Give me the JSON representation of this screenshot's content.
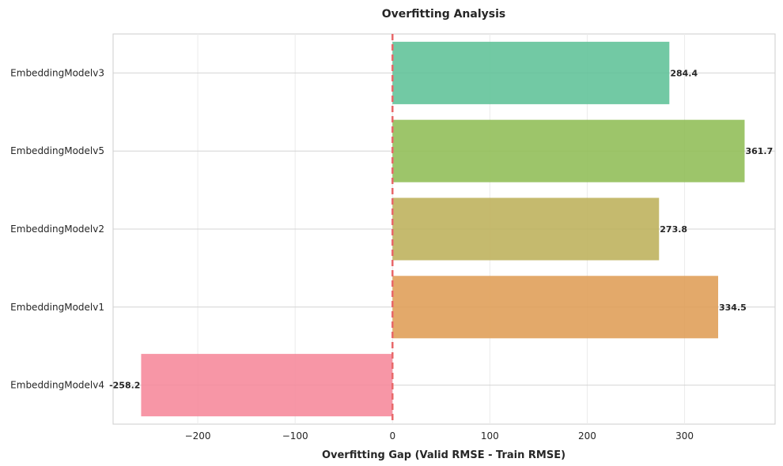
{
  "chart_data": {
    "type": "bar",
    "orientation": "horizontal",
    "title": "Overfitting Analysis",
    "xlabel": "Overfitting Gap (Valid RMSE - Train RMSE)",
    "ylabel": "",
    "xlim": [
      -287,
      393
    ],
    "xticks": [
      -200,
      -100,
      0,
      100,
      200,
      300
    ],
    "xtick_labels": [
      "−200",
      "−100",
      "0",
      "100",
      "200",
      "300"
    ],
    "grid": true,
    "reference_line": {
      "x": 0,
      "style": "dashed",
      "color": "#e8686a"
    },
    "categories": [
      "EmbeddingModelv3",
      "EmbeddingModelv5",
      "EmbeddingModelv2",
      "EmbeddingModelv1",
      "EmbeddingModelv4"
    ],
    "values": [
      284.4,
      361.7,
      273.8,
      334.5,
      -258.2
    ],
    "value_labels": [
      "284.4",
      "361.7",
      "273.8",
      "334.5",
      "-258.2"
    ],
    "colors": [
      "#5ec297",
      "#8fbd55",
      "#bdb15a",
      "#df9d55",
      "#f6879a"
    ]
  }
}
